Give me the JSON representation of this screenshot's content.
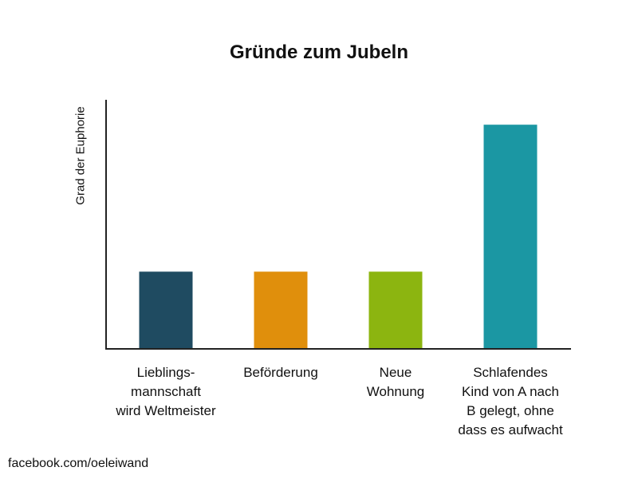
{
  "chart_data": {
    "type": "bar",
    "title": "Gründe zum Jubeln",
    "xlabel": "",
    "ylabel": "Grad der Euphorie",
    "ylim": [
      0,
      100
    ],
    "grid": false,
    "categories": [
      "Lieblings-\nmannschaft\nwird Weltmeister",
      "Beförderung",
      "Neue\nWohnung",
      "Schlafendes\nKind von A nach\nB gelegt, ohne\ndass es aufwacht"
    ],
    "values": [
      31,
      31,
      31,
      90
    ],
    "colors": [
      "#1f4b61",
      "#e08f0c",
      "#8cb510",
      "#1b97a3"
    ]
  },
  "footer": {
    "credit": "facebook.com/oeleiwand"
  }
}
